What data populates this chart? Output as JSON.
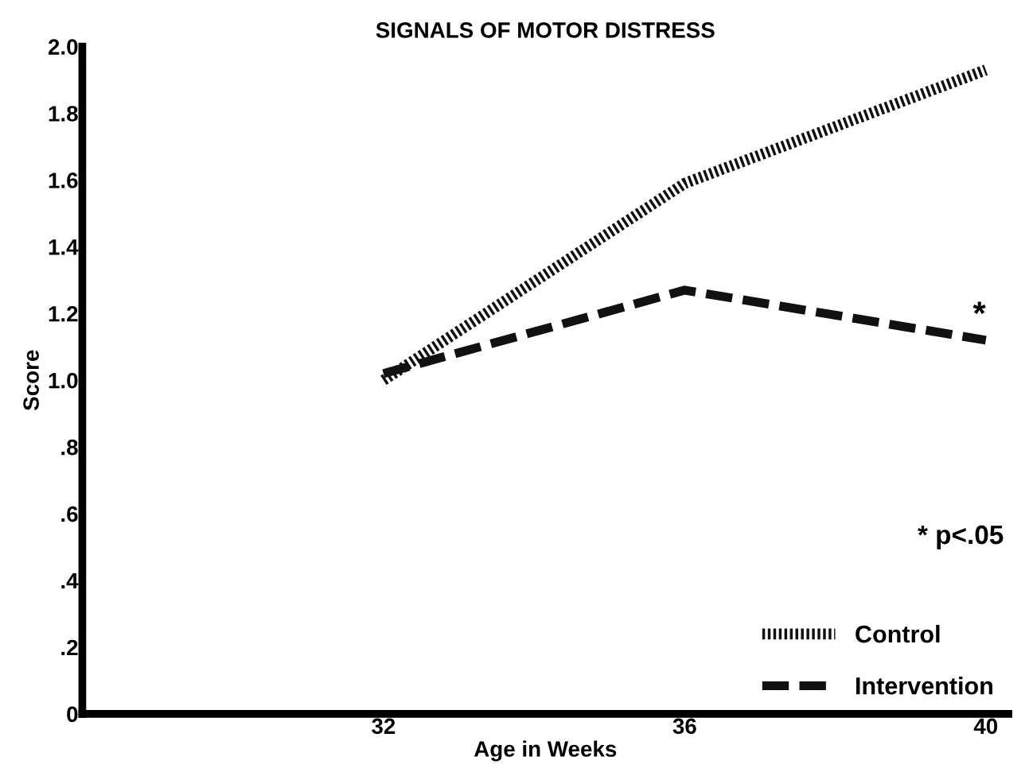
{
  "chart_data": {
    "type": "line",
    "title": "SIGNALS OF MOTOR DISTRESS",
    "xlabel": "Age in Weeks",
    "ylabel": "Score",
    "x": [
      32,
      36,
      40
    ],
    "series": [
      {
        "name": "Control",
        "color": "#111111",
        "values": [
          1.0,
          1.59,
          1.93
        ],
        "line_style": "dotted"
      },
      {
        "name": "Intervention",
        "color": "#111111",
        "values": [
          1.02,
          1.27,
          1.12
        ],
        "line_style": "dashed"
      }
    ],
    "xlim": [
      28,
      40.3
    ],
    "xticks": [
      32,
      36,
      40
    ],
    "ylim": [
      0,
      2.0
    ],
    "yticks": [
      {
        "value": 0,
        "label": "0"
      },
      {
        "value": 0.2,
        "label": ".2"
      },
      {
        "value": 0.4,
        "label": ".4"
      },
      {
        "value": 0.6,
        "label": ".6"
      },
      {
        "value": 0.8,
        "label": ".8"
      },
      {
        "value": 1.0,
        "label": "1.0"
      },
      {
        "value": 1.2,
        "label": "1.2"
      },
      {
        "value": 1.4,
        "label": "1.4"
      },
      {
        "value": 1.6,
        "label": "1.6"
      },
      {
        "value": 1.8,
        "label": "1.8"
      },
      {
        "value": 2.0,
        "label": "2.0"
      }
    ],
    "annotations": [
      {
        "text": "*",
        "x": 40,
        "y": 1.12
      },
      "* p<.05"
    ],
    "legend": "bottom right",
    "grid": false,
    "marker": "none"
  }
}
